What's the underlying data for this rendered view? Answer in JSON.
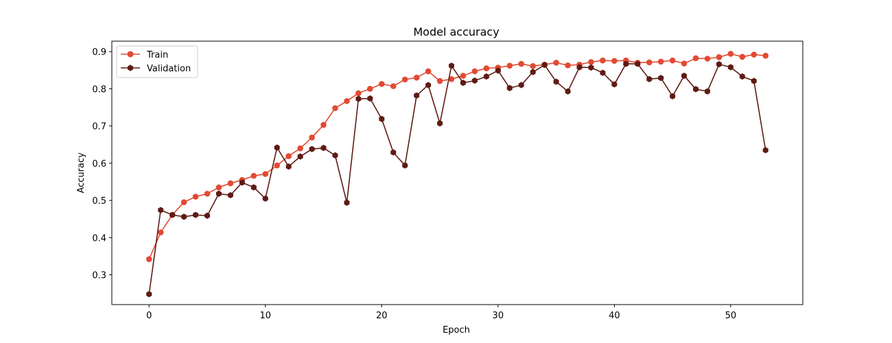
{
  "chart_data": {
    "type": "line",
    "title": "Model accuracy",
    "xlabel": "Epoch",
    "ylabel": "Accuracy",
    "xlim": [
      -3.2,
      56.2
    ],
    "ylim": [
      0.22,
      0.928
    ],
    "xticks": [
      0,
      10,
      20,
      30,
      40,
      50
    ],
    "yticks": [
      0.3,
      0.4,
      0.5,
      0.6,
      0.7,
      0.8,
      0.9
    ],
    "grid": false,
    "legend_position": "upper-left",
    "x": [
      0,
      1,
      2,
      3,
      4,
      5,
      6,
      7,
      8,
      9,
      10,
      11,
      12,
      13,
      14,
      15,
      16,
      17,
      18,
      19,
      20,
      21,
      22,
      23,
      24,
      25,
      26,
      27,
      28,
      29,
      30,
      31,
      32,
      33,
      34,
      35,
      36,
      37,
      38,
      39,
      40,
      41,
      42,
      43,
      44,
      45,
      46,
      47,
      48,
      49,
      50,
      51,
      52,
      53
    ],
    "series": [
      {
        "name": "Train",
        "color": "#e24a33",
        "marker": "circle",
        "values": [
          0.342,
          0.414,
          0.461,
          0.495,
          0.51,
          0.518,
          0.535,
          0.546,
          0.555,
          0.566,
          0.571,
          0.594,
          0.619,
          0.64,
          0.669,
          0.703,
          0.748,
          0.767,
          0.788,
          0.8,
          0.813,
          0.807,
          0.825,
          0.83,
          0.847,
          0.821,
          0.826,
          0.835,
          0.847,
          0.855,
          0.857,
          0.862,
          0.867,
          0.861,
          0.865,
          0.87,
          0.863,
          0.865,
          0.872,
          0.876,
          0.875,
          0.876,
          0.87,
          0.871,
          0.873,
          0.876,
          0.868,
          0.882,
          0.881,
          0.885,
          0.894,
          0.886,
          0.892,
          0.889
        ]
      },
      {
        "name": "Validation",
        "color": "#5e1b14",
        "marker": "hexagon",
        "values": [
          0.248,
          0.474,
          0.461,
          0.456,
          0.461,
          0.459,
          0.518,
          0.514,
          0.548,
          0.535,
          0.505,
          0.642,
          0.591,
          0.618,
          0.638,
          0.641,
          0.621,
          0.494,
          0.773,
          0.774,
          0.719,
          0.629,
          0.594,
          0.782,
          0.81,
          0.707,
          0.862,
          0.816,
          0.822,
          0.833,
          0.849,
          0.802,
          0.81,
          0.845,
          0.864,
          0.819,
          0.793,
          0.858,
          0.857,
          0.843,
          0.812,
          0.867,
          0.867,
          0.826,
          0.829,
          0.78,
          0.835,
          0.799,
          0.793,
          0.866,
          0.858,
          0.833,
          0.821,
          0.635
        ]
      }
    ]
  }
}
